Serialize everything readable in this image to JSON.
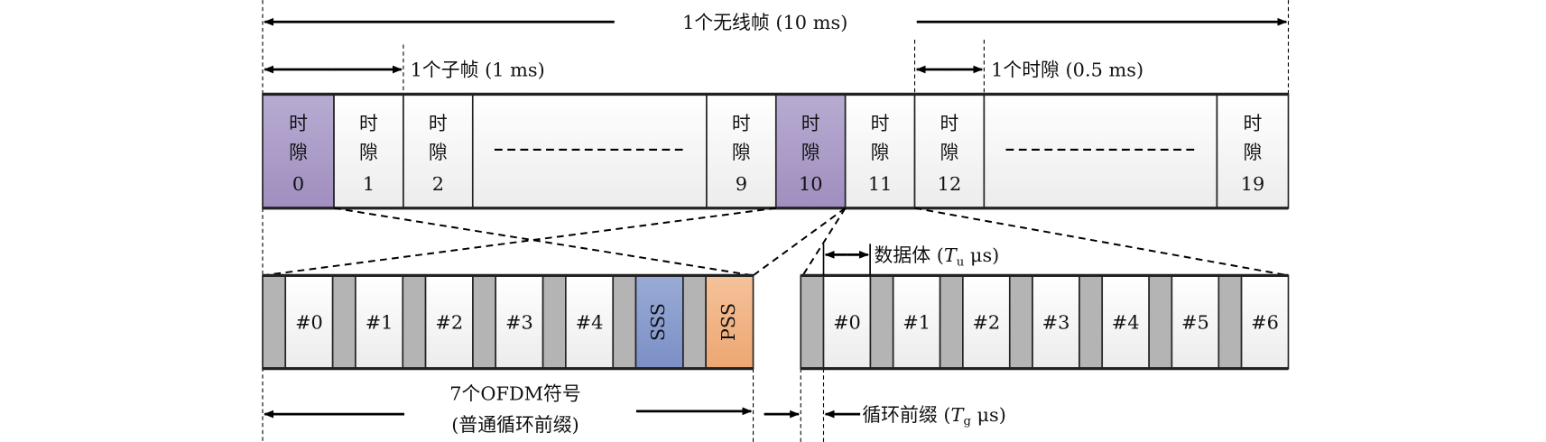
{
  "labels": {
    "radio_frame": "1个无线帧 (10 ms)",
    "subframe": "1个子帧 (1 ms)",
    "slot": "1个时隙 (0.5 ms)",
    "data_body_prefix": "数据体 (",
    "data_body_sym": "T",
    "data_body_sub": "u",
    "data_body_unit": " μs)",
    "cp_prefix": "循环前缀 (",
    "cp_sym": "T",
    "cp_sub": "g",
    "cp_unit": " μs)",
    "ofdm_line1": "7个OFDM符号",
    "ofdm_line2": "(普通循环前缀)"
  },
  "slot_char1": "时",
  "slot_char2": "隙",
  "slots": [
    {
      "num": "0",
      "highlight": true
    },
    {
      "num": "1",
      "highlight": false
    },
    {
      "num": "2",
      "highlight": false
    },
    {
      "ellipsis": true
    },
    {
      "num": "9",
      "highlight": false
    },
    {
      "num": "10",
      "highlight": true
    },
    {
      "num": "11",
      "highlight": false
    },
    {
      "num": "12",
      "highlight": false
    },
    {
      "ellipsis": true
    },
    {
      "num": "19",
      "highlight": false
    }
  ],
  "left_symbols": [
    "#0",
    "#1",
    "#2",
    "#3",
    "#4",
    "SSS",
    "PSS"
  ],
  "right_symbols": [
    "#0",
    "#1",
    "#2",
    "#3",
    "#4",
    "#5",
    "#6"
  ],
  "colors": {
    "highlight_slot": "#a797c3",
    "cyclic_prefix": "#b4b4b4",
    "sss": "#8a9dcc",
    "pss": "#f0b282",
    "cell": "#f6f6f6"
  }
}
